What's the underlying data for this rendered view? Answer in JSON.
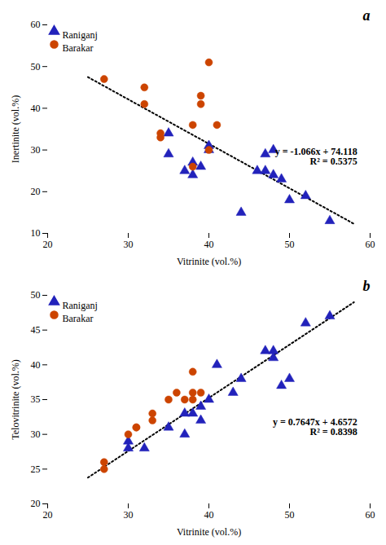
{
  "chart_data": [
    {
      "type": "scatter",
      "title": "a",
      "xlabel": "Vitrinite (vol.%)",
      "ylabel": "Inertinite (vol.%)",
      "xlim": [
        20,
        60
      ],
      "xticks": [
        20,
        30,
        40,
        50,
        60
      ],
      "ylim": [
        10,
        60
      ],
      "yticks": [
        10,
        20,
        30,
        40,
        50,
        60
      ],
      "grid": false,
      "legend": "upper left",
      "annotations": [
        "y = -1.066x + 74.118",
        "R² = 0.5375"
      ],
      "series": [
        {
          "name": "Raniganj",
          "color": "#2222BB",
          "marker": "triangle",
          "x": [
            35,
            35,
            37,
            38,
            38,
            39,
            40,
            40,
            44,
            46,
            47,
            47,
            48,
            48,
            49,
            50,
            52,
            55
          ],
          "values": [
            29,
            34,
            25,
            24,
            27,
            26,
            31,
            30,
            15,
            25,
            25,
            29,
            24,
            30,
            23,
            18,
            19,
            13
          ]
        },
        {
          "name": "Barakar",
          "color": "#CC4400",
          "marker": "circle",
          "x": [
            27,
            32,
            32,
            34,
            34,
            38,
            38,
            39,
            39,
            40,
            40,
            41
          ],
          "values": [
            47,
            45,
            41,
            33,
            34,
            26,
            36,
            43,
            41,
            51,
            30,
            36
          ]
        },
        {
          "type": "line",
          "color": "black",
          "line_style": "dotted",
          "x": [
            25,
            58
          ],
          "values": [
            47.468,
            12.29
          ]
        }
      ]
    },
    {
      "type": "scatter",
      "title": "b",
      "xlabel": "Vitrinite (vol.%)",
      "ylabel": "Telovitrinite (vol.%)",
      "xlim": [
        20,
        60
      ],
      "xticks": [
        20,
        30,
        40,
        50,
        60
      ],
      "ylim": [
        20,
        50
      ],
      "yticks": [
        20,
        25,
        30,
        35,
        40,
        45,
        50
      ],
      "grid": false,
      "legend": "upper left",
      "annotations": [
        "y = 0.7647x + 4.6572",
        "R² = 0.8398"
      ],
      "series": [
        {
          "name": "Raniganj",
          "color": "#2222BB",
          "marker": "triangle",
          "x": [
            30,
            30,
            32,
            35,
            37,
            37,
            38,
            39,
            39,
            40,
            41,
            43,
            44,
            47,
            48,
            48,
            49,
            50,
            52,
            55
          ],
          "values": [
            28,
            29,
            28,
            31,
            30,
            33,
            33,
            32,
            34,
            35,
            40,
            36,
            38,
            42,
            41,
            42,
            37,
            38,
            46,
            47
          ]
        },
        {
          "name": "Barakar",
          "color": "#CC4400",
          "marker": "circle",
          "x": [
            27,
            27,
            30,
            31,
            31,
            33,
            33,
            35,
            36,
            37,
            38,
            38,
            38,
            39
          ],
          "values": [
            25,
            26,
            30,
            31,
            31,
            32,
            33,
            35,
            36,
            35,
            36,
            35,
            39,
            36
          ]
        },
        {
          "type": "line",
          "color": "black",
          "line_style": "dotted",
          "x": [
            25,
            58
          ],
          "values": [
            23.7747,
            49.0098
          ]
        }
      ]
    }
  ]
}
